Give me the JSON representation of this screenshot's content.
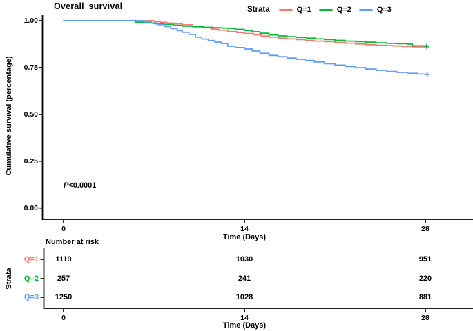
{
  "title": "Overall survival",
  "legend": {
    "title": "Strata",
    "entries": [
      {
        "label": "Q=1",
        "color": "#F8766D"
      },
      {
        "label": "Q=2",
        "color": "#00BA38"
      },
      {
        "label": "Q=3",
        "color": "#619CFF"
      }
    ]
  },
  "y_axis": {
    "label": "Cumulative survival (percentage)",
    "ticks": [
      "1.00",
      "0.75",
      "0.50",
      "0.25",
      "0.00"
    ]
  },
  "x_axis": {
    "label": "Time (Days)",
    "ticks": [
      "0",
      "14",
      "28"
    ]
  },
  "annotation": {
    "italic": "P",
    "rest": "<0.0001"
  },
  "risk_table": {
    "header": "Number at risk",
    "axis_label": "Strata",
    "x_label": "Time (Days)",
    "x_ticks": [
      "0",
      "14",
      "28"
    ],
    "rows": [
      {
        "label": "Q=1",
        "color": "#F8766D",
        "values": [
          "1119",
          "1030",
          "951"
        ]
      },
      {
        "label": "Q=2",
        "color": "#00BA38",
        "values": [
          "257",
          "241",
          "220"
        ]
      },
      {
        "label": "Q=3",
        "color": "#619CFF",
        "values": [
          "1250",
          "1028",
          "881"
        ]
      }
    ]
  },
  "chart_data": {
    "type": "line",
    "subtype": "kaplan-meier",
    "title": "Overall survival",
    "xlabel": "Time (Days)",
    "ylabel": "Cumulative survival (percentage)",
    "xlim": [
      0,
      29
    ],
    "ylim": [
      0,
      1.0
    ],
    "xticks": [
      0,
      14,
      28
    ],
    "yticks": [
      0.0,
      0.25,
      0.5,
      0.75,
      1.0
    ],
    "grid": false,
    "legend_position": "top",
    "p_value": "P<0.0001",
    "series": [
      {
        "name": "Q=1",
        "color": "#F8766D",
        "points": [
          [
            0,
            1.0
          ],
          [
            6.6,
            1.0
          ],
          [
            7,
            0.995
          ],
          [
            7.5,
            0.991
          ],
          [
            8,
            0.987
          ],
          [
            8.6,
            0.983
          ],
          [
            9.2,
            0.978
          ],
          [
            10,
            0.97
          ],
          [
            10.7,
            0.963
          ],
          [
            11.4,
            0.956
          ],
          [
            12,
            0.95
          ],
          [
            12.7,
            0.942
          ],
          [
            13.4,
            0.937
          ],
          [
            14,
            0.932
          ],
          [
            14.7,
            0.925
          ],
          [
            15.3,
            0.918
          ],
          [
            15.9,
            0.912
          ],
          [
            16.6,
            0.907
          ],
          [
            17.3,
            0.903
          ],
          [
            18,
            0.899
          ],
          [
            18.7,
            0.895
          ],
          [
            19.4,
            0.891
          ],
          [
            20.2,
            0.888
          ],
          [
            21,
            0.884
          ],
          [
            21.8,
            0.88
          ],
          [
            22.6,
            0.876
          ],
          [
            23.4,
            0.872
          ],
          [
            24.2,
            0.869
          ],
          [
            25,
            0.867
          ],
          [
            25.5,
            0.865
          ],
          [
            26.2,
            0.863
          ],
          [
            27,
            0.861
          ],
          [
            28.1,
            0.86
          ]
        ]
      },
      {
        "name": "Q=2",
        "color": "#00BA38",
        "points": [
          [
            0,
            1.0
          ],
          [
            5.5,
            1.0
          ],
          [
            5.6,
            0.992
          ],
          [
            6.2,
            0.988
          ],
          [
            7,
            0.984
          ],
          [
            7.8,
            0.98
          ],
          [
            8.5,
            0.975
          ],
          [
            9.2,
            0.971
          ],
          [
            10,
            0.968
          ],
          [
            10.8,
            0.965
          ],
          [
            11.6,
            0.963
          ],
          [
            12.2,
            0.961
          ],
          [
            12.7,
            0.959
          ],
          [
            13.3,
            0.954
          ],
          [
            14,
            0.948
          ],
          [
            14.6,
            0.941
          ],
          [
            15.2,
            0.933
          ],
          [
            15.9,
            0.924
          ],
          [
            16.6,
            0.919
          ],
          [
            17.3,
            0.915
          ],
          [
            18,
            0.911
          ],
          [
            18.8,
            0.907
          ],
          [
            19.5,
            0.903
          ],
          [
            20.2,
            0.899
          ],
          [
            21,
            0.895
          ],
          [
            21.8,
            0.891
          ],
          [
            22.6,
            0.888
          ],
          [
            23.4,
            0.885
          ],
          [
            24.2,
            0.882
          ],
          [
            25,
            0.879
          ],
          [
            25.8,
            0.877
          ],
          [
            26.6,
            0.875
          ],
          [
            27,
            0.866
          ],
          [
            28.1,
            0.864
          ]
        ]
      },
      {
        "name": "Q=3",
        "color": "#619CFF",
        "points": [
          [
            0,
            1.0
          ],
          [
            6.0,
            1.0
          ],
          [
            6.3,
            0.994
          ],
          [
            6.8,
            0.987
          ],
          [
            7.3,
            0.979
          ],
          [
            7.8,
            0.969
          ],
          [
            8.3,
            0.958
          ],
          [
            8.8,
            0.947
          ],
          [
            9.2,
            0.938
          ],
          [
            9.7,
            0.927
          ],
          [
            10.2,
            0.912
          ],
          [
            10.7,
            0.902
          ],
          [
            11.2,
            0.894
          ],
          [
            11.7,
            0.886
          ],
          [
            12.2,
            0.878
          ],
          [
            12.7,
            0.864
          ],
          [
            13.3,
            0.857
          ],
          [
            14,
            0.849
          ],
          [
            14.6,
            0.838
          ],
          [
            15.2,
            0.826
          ],
          [
            15.9,
            0.815
          ],
          [
            16.6,
            0.808
          ],
          [
            17.3,
            0.801
          ],
          [
            18,
            0.794
          ],
          [
            18.7,
            0.788
          ],
          [
            19.4,
            0.78
          ],
          [
            20.2,
            0.77
          ],
          [
            21,
            0.763
          ],
          [
            21.8,
            0.756
          ],
          [
            22.6,
            0.749
          ],
          [
            23.4,
            0.742
          ],
          [
            24.2,
            0.735
          ],
          [
            25,
            0.729
          ],
          [
            25.8,
            0.724
          ],
          [
            26.6,
            0.719
          ],
          [
            27.4,
            0.715
          ],
          [
            28.15,
            0.712
          ]
        ]
      }
    ],
    "number_at_risk": {
      "times": [
        0,
        14,
        28
      ],
      "groups": [
        {
          "name": "Q=1",
          "counts": [
            1119,
            1030,
            951
          ]
        },
        {
          "name": "Q=2",
          "counts": [
            257,
            241,
            220
          ]
        },
        {
          "name": "Q=3",
          "counts": [
            1250,
            1028,
            881
          ]
        }
      ]
    }
  }
}
